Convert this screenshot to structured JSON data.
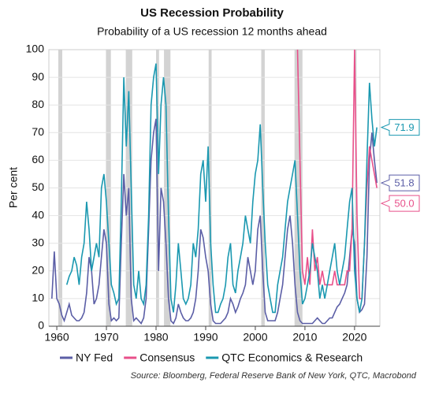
{
  "chart_data": {
    "type": "line",
    "title": "US Recession Probability",
    "subtitle": "Probability of a US recession 12 months ahead",
    "y_label": "Per cent",
    "source": "Source: Bloomberg, Federal Reserve Bank of New York, QTC, Macrobond",
    "xlim": [
      1958.4,
      2025.1
    ],
    "ylim": [
      0,
      100
    ],
    "xticks": [
      1960,
      1970,
      1980,
      1990,
      2000,
      2010,
      2020
    ],
    "yticks": [
      0,
      10,
      20,
      30,
      40,
      50,
      60,
      70,
      80,
      90,
      100
    ],
    "grid": true,
    "legend": "bottom",
    "recession_color": "#d3d3d3",
    "recessions": [
      [
        1960.3,
        1961.1
      ],
      [
        1969.9,
        1970.9
      ],
      [
        1973.9,
        1975.2
      ],
      [
        1980.0,
        1980.6
      ],
      [
        1981.6,
        1982.9
      ],
      [
        1990.6,
        1991.2
      ],
      [
        2001.2,
        2001.9
      ],
      [
        2007.9,
        2009.5
      ],
      [
        2020.1,
        2020.4
      ]
    ],
    "x": [
      1959,
      1959.5,
      1960,
      1960.5,
      1961,
      1961.5,
      1962,
      1962.5,
      1963,
      1963.5,
      1964,
      1964.5,
      1965,
      1965.5,
      1966,
      1966.5,
      1967,
      1967.5,
      1968,
      1968.5,
      1969,
      1969.5,
      1970,
      1970.5,
      1971,
      1971.5,
      1972,
      1972.5,
      1973,
      1973.5,
      1974,
      1974.5,
      1975,
      1975.5,
      1976,
      1976.5,
      1977,
      1977.5,
      1978,
      1978.5,
      1979,
      1979.5,
      1980,
      1980.5,
      1981,
      1981.5,
      1982,
      1982.5,
      1983,
      1983.5,
      1984,
      1984.5,
      1985,
      1985.5,
      1986,
      1986.5,
      1987,
      1987.5,
      1988,
      1988.5,
      1989,
      1989.5,
      1990,
      1990.5,
      1991,
      1991.5,
      1992,
      1992.5,
      1993,
      1993.5,
      1994,
      1994.5,
      1995,
      1995.5,
      1996,
      1996.5,
      1997,
      1997.5,
      1998,
      1998.5,
      1999,
      1999.5,
      2000,
      2000.5,
      2001,
      2001.5,
      2002,
      2002.5,
      2003,
      2003.5,
      2004,
      2004.5,
      2005,
      2005.5,
      2006,
      2006.5,
      2007,
      2007.5,
      2008,
      2008.5,
      2009,
      2009.5,
      2010,
      2010.5,
      2011,
      2011.5,
      2012,
      2012.5,
      2013,
      2013.5,
      2014,
      2014.5,
      2015,
      2015.5,
      2016,
      2016.5,
      2017,
      2017.5,
      2018,
      2018.5,
      2019,
      2019.5,
      2020,
      2020.5,
      2021,
      2021.5,
      2022,
      2022.5,
      2023,
      2023.5,
      2024,
      2024.5
    ],
    "series": [
      {
        "name": "NY Fed",
        "color": "#5b5ea6",
        "end_label": "51.8",
        "values": [
          10,
          27,
          10,
          8,
          4,
          2,
          5,
          8,
          4,
          3,
          2,
          2,
          3,
          5,
          12,
          25,
          20,
          8,
          10,
          15,
          25,
          35,
          30,
          8,
          2,
          3,
          2,
          3,
          30,
          55,
          40,
          50,
          10,
          2,
          3,
          2,
          1,
          3,
          10,
          35,
          60,
          70,
          75,
          20,
          50,
          45,
          30,
          10,
          2,
          1,
          3,
          8,
          5,
          3,
          2,
          2,
          3,
          5,
          10,
          20,
          35,
          32,
          25,
          20,
          8,
          2,
          1,
          1,
          1,
          2,
          3,
          5,
          10,
          8,
          5,
          7,
          10,
          12,
          15,
          25,
          20,
          15,
          20,
          35,
          40,
          20,
          5,
          2,
          2,
          2,
          2,
          5,
          10,
          15,
          25,
          35,
          40,
          30,
          15,
          5,
          2,
          1,
          1,
          1,
          1,
          1,
          2,
          3,
          2,
          1,
          1,
          2,
          3,
          3,
          5,
          7,
          8,
          10,
          12,
          15,
          25,
          35,
          30,
          10,
          5,
          6,
          8,
          25,
          60,
          70,
          60,
          51.8
        ]
      },
      {
        "name": "Consensus",
        "color": "#e8508a",
        "end_label": "50.0",
        "x": [
          2008.5,
          2009,
          2009.5,
          2010,
          2010.5,
          2011,
          2011.5,
          2012,
          2012.5,
          2013,
          2013.5,
          2014,
          2014.5,
          2015,
          2015.5,
          2016,
          2016.5,
          2017,
          2017.5,
          2018,
          2018.5,
          2019,
          2019.5,
          2020,
          2020.5,
          2021,
          2021.5,
          2022,
          2022.5,
          2023,
          2023.5,
          2024,
          2024.5
        ],
        "values": [
          100,
          60,
          20,
          15,
          25,
          15,
          35,
          20,
          25,
          15,
          20,
          15,
          15,
          15,
          15,
          20,
          15,
          15,
          15,
          15,
          20,
          20,
          35,
          100,
          40,
          10,
          10,
          30,
          50,
          65,
          60,
          55,
          50
        ]
      },
      {
        "name": "QTC Economics & Research",
        "color": "#1a98b0",
        "end_label": "71.9",
        "values": [
          null,
          null,
          null,
          null,
          null,
          null,
          15,
          18,
          20,
          25,
          22,
          15,
          25,
          30,
          45,
          35,
          20,
          25,
          30,
          25,
          50,
          55,
          45,
          30,
          15,
          12,
          8,
          10,
          45,
          90,
          65,
          85,
          50,
          15,
          10,
          20,
          10,
          8,
          15,
          40,
          80,
          90,
          95,
          55,
          80,
          90,
          80,
          40,
          10,
          5,
          15,
          30,
          20,
          10,
          8,
          10,
          15,
          30,
          25,
          35,
          55,
          60,
          45,
          65,
          30,
          15,
          5,
          5,
          8,
          10,
          15,
          25,
          30,
          15,
          12,
          20,
          25,
          30,
          40,
          35,
          30,
          45,
          55,
          60,
          73,
          50,
          30,
          15,
          10,
          5,
          5,
          15,
          20,
          25,
          35,
          45,
          50,
          55,
          60,
          40,
          20,
          8,
          10,
          15,
          20,
          30,
          25,
          20,
          10,
          15,
          10,
          15,
          20,
          25,
          30,
          20,
          15,
          20,
          25,
          35,
          45,
          50,
          20,
          10,
          5,
          10,
          30,
          60,
          88,
          75,
          65,
          71.9
        ]
      }
    ]
  }
}
